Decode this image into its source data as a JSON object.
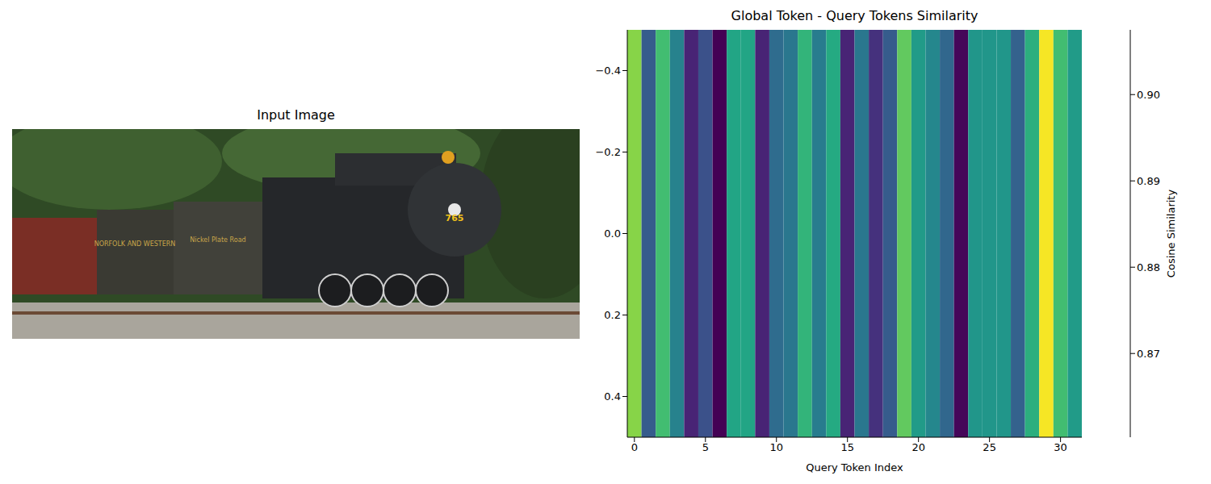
{
  "chart_data": [
    {
      "type": "image",
      "title": "Input Image",
      "texts": [
        "765",
        "NORFOLK AND WESTERN",
        "Nickel Plate Road"
      ]
    },
    {
      "type": "heatmap",
      "title": "Global Token - Query Tokens Similarity",
      "x_label": "Query Token Index",
      "x": [
        0,
        1,
        2,
        3,
        4,
        5,
        6,
        7,
        8,
        9,
        10,
        11,
        12,
        13,
        14,
        15,
        16,
        17,
        18,
        19,
        20,
        21,
        22,
        23,
        24,
        25,
        26,
        27,
        28,
        29,
        30,
        31
      ],
      "cells": [
        [
          0.899,
          0.874,
          0.893,
          0.881,
          0.865,
          0.872,
          0.86,
          0.888,
          0.888,
          0.865,
          0.877,
          0.879,
          0.891,
          0.88,
          0.889,
          0.865,
          0.879,
          0.867,
          0.874,
          0.896,
          0.886,
          0.882,
          0.876,
          0.861,
          0.885,
          0.885,
          0.885,
          0.875,
          0.89,
          0.907,
          0.893,
          0.886
        ]
      ],
      "xlim": [
        -0.5,
        31.5
      ],
      "xticks": [
        0,
        5,
        10,
        15,
        20,
        25,
        30
      ],
      "ylim": [
        0.5,
        -0.5
      ],
      "yticks": [
        {
          "value": -0.4,
          "label": "−0.4"
        },
        {
          "value": -0.2,
          "label": "−0.2"
        },
        {
          "value": 0,
          "label": "0.0"
        },
        0.2,
        0.4
      ],
      "colorbar_label": "Cosine Similarity",
      "colorbar_range": [
        0.8603,
        0.9075
      ],
      "colorbar_ticks": [
        0.87,
        0.88,
        0.89,
        {
          "value": 0.9,
          "label": "0.90"
        }
      ]
    }
  ]
}
